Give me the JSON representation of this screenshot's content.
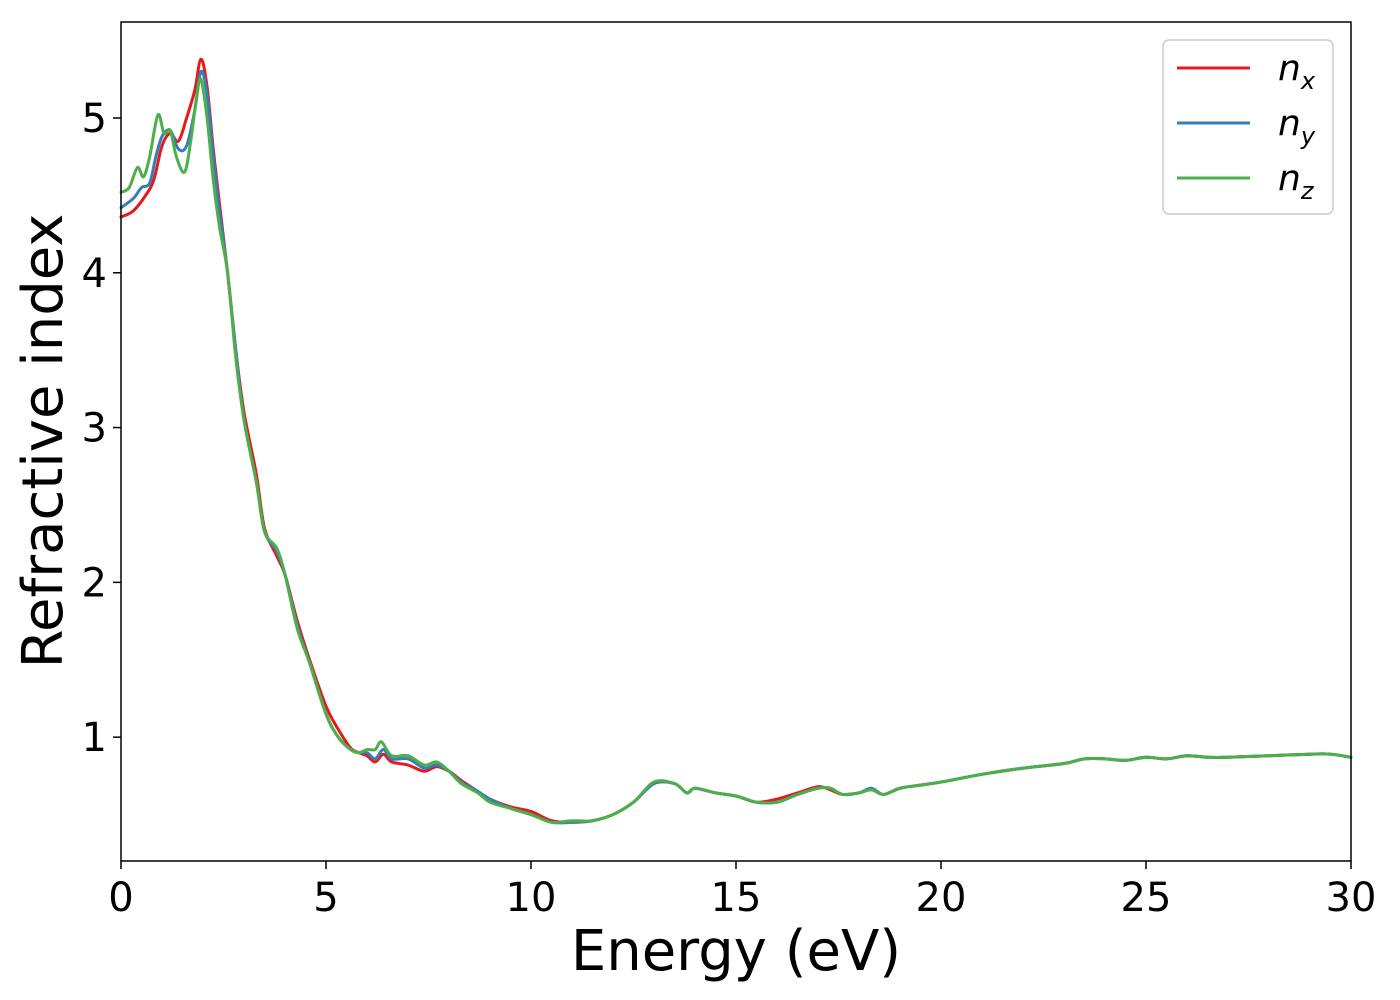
{
  "chart_data": {
    "type": "line",
    "title": "",
    "xlabel": "Energy (eV)",
    "ylabel": "Refractive index",
    "xlim": [
      0,
      30
    ],
    "ylim": [
      0.2,
      5.62
    ],
    "xticks": [
      0,
      5,
      10,
      15,
      20,
      25,
      30
    ],
    "xtick_labels": [
      "0",
      "5",
      "10",
      "15",
      "20",
      "25",
      "30"
    ],
    "yticks": [
      1,
      2,
      3,
      4,
      5
    ],
    "ytick_labels": [
      "1",
      "2",
      "3",
      "4",
      "5"
    ],
    "grid": false,
    "legend_position": "top-right",
    "series": [
      {
        "name": "n",
        "subscript": "x",
        "color": "#e41a1c",
        "points": [
          [
            0,
            4.36
          ],
          [
            0.3,
            4.4
          ],
          [
            0.6,
            4.5
          ],
          [
            0.8,
            4.6
          ],
          [
            1.0,
            4.82
          ],
          [
            1.2,
            4.9
          ],
          [
            1.4,
            4.85
          ],
          [
            1.6,
            5.0
          ],
          [
            1.8,
            5.18
          ],
          [
            1.95,
            5.38
          ],
          [
            2.1,
            5.2
          ],
          [
            2.25,
            4.8
          ],
          [
            2.4,
            4.45
          ],
          [
            2.6,
            4.0
          ],
          [
            2.8,
            3.5
          ],
          [
            3.0,
            3.1
          ],
          [
            3.3,
            2.7
          ],
          [
            3.5,
            2.35
          ],
          [
            3.8,
            2.17
          ],
          [
            4.0,
            2.05
          ],
          [
            4.3,
            1.75
          ],
          [
            4.6,
            1.5
          ],
          [
            5.0,
            1.2
          ],
          [
            5.3,
            1.05
          ],
          [
            5.6,
            0.93
          ],
          [
            5.8,
            0.9
          ],
          [
            6.0,
            0.88
          ],
          [
            6.2,
            0.84
          ],
          [
            6.4,
            0.89
          ],
          [
            6.6,
            0.84
          ],
          [
            7.0,
            0.82
          ],
          [
            7.4,
            0.78
          ],
          [
            7.7,
            0.81
          ],
          [
            8.0,
            0.78
          ],
          [
            8.3,
            0.72
          ],
          [
            8.7,
            0.65
          ],
          [
            9.0,
            0.6
          ],
          [
            9.5,
            0.55
          ],
          [
            10.0,
            0.52
          ],
          [
            10.5,
            0.46
          ],
          [
            11.0,
            0.45
          ],
          [
            11.5,
            0.46
          ],
          [
            12.0,
            0.5
          ],
          [
            12.5,
            0.58
          ],
          [
            13.0,
            0.7
          ],
          [
            13.5,
            0.7
          ],
          [
            13.8,
            0.64
          ],
          [
            14.0,
            0.67
          ],
          [
            14.5,
            0.64
          ],
          [
            15.0,
            0.62
          ],
          [
            15.5,
            0.58
          ],
          [
            16.0,
            0.6
          ],
          [
            16.5,
            0.64
          ],
          [
            17.0,
            0.68
          ],
          [
            17.3,
            0.66
          ],
          [
            17.6,
            0.63
          ],
          [
            18.0,
            0.64
          ],
          [
            18.3,
            0.66
          ],
          [
            18.6,
            0.63
          ],
          [
            19.0,
            0.67
          ],
          [
            19.5,
            0.69
          ],
          [
            20.0,
            0.71
          ],
          [
            21.0,
            0.76
          ],
          [
            22.0,
            0.8
          ],
          [
            23.0,
            0.83
          ],
          [
            23.5,
            0.86
          ],
          [
            24.0,
            0.86
          ],
          [
            24.5,
            0.85
          ],
          [
            25.0,
            0.87
          ],
          [
            25.5,
            0.86
          ],
          [
            26.0,
            0.88
          ],
          [
            26.5,
            0.87
          ],
          [
            27.0,
            0.87
          ],
          [
            28.0,
            0.88
          ],
          [
            29.0,
            0.89
          ],
          [
            29.5,
            0.89
          ],
          [
            30.0,
            0.87
          ]
        ]
      },
      {
        "name": "n",
        "subscript": "y",
        "color": "#377eb8",
        "points": [
          [
            0,
            4.42
          ],
          [
            0.3,
            4.48
          ],
          [
            0.5,
            4.55
          ],
          [
            0.7,
            4.58
          ],
          [
            0.85,
            4.75
          ],
          [
            1.0,
            4.88
          ],
          [
            1.2,
            4.92
          ],
          [
            1.4,
            4.8
          ],
          [
            1.6,
            4.82
          ],
          [
            1.8,
            5.05
          ],
          [
            1.95,
            5.3
          ],
          [
            2.1,
            5.15
          ],
          [
            2.25,
            4.75
          ],
          [
            2.4,
            4.4
          ],
          [
            2.6,
            4.0
          ],
          [
            2.8,
            3.5
          ],
          [
            3.0,
            3.05
          ],
          [
            3.3,
            2.65
          ],
          [
            3.5,
            2.33
          ],
          [
            3.8,
            2.2
          ],
          [
            4.0,
            2.05
          ],
          [
            4.3,
            1.72
          ],
          [
            4.6,
            1.48
          ],
          [
            5.0,
            1.15
          ],
          [
            5.3,
            1.0
          ],
          [
            5.6,
            0.92
          ],
          [
            5.8,
            0.9
          ],
          [
            6.0,
            0.9
          ],
          [
            6.2,
            0.86
          ],
          [
            6.4,
            0.92
          ],
          [
            6.6,
            0.86
          ],
          [
            7.0,
            0.86
          ],
          [
            7.4,
            0.8
          ],
          [
            7.7,
            0.82
          ],
          [
            8.0,
            0.78
          ],
          [
            8.3,
            0.71
          ],
          [
            8.7,
            0.65
          ],
          [
            9.0,
            0.6
          ],
          [
            9.5,
            0.54
          ],
          [
            10.0,
            0.5
          ],
          [
            10.5,
            0.45
          ],
          [
            11.0,
            0.45
          ],
          [
            11.5,
            0.46
          ],
          [
            12.0,
            0.5
          ],
          [
            12.5,
            0.58
          ],
          [
            13.0,
            0.7
          ],
          [
            13.5,
            0.7
          ],
          [
            13.8,
            0.64
          ],
          [
            14.0,
            0.67
          ],
          [
            14.5,
            0.64
          ],
          [
            15.0,
            0.62
          ],
          [
            15.5,
            0.58
          ],
          [
            16.0,
            0.58
          ],
          [
            16.5,
            0.63
          ],
          [
            17.0,
            0.67
          ],
          [
            17.3,
            0.67
          ],
          [
            17.6,
            0.63
          ],
          [
            18.0,
            0.64
          ],
          [
            18.3,
            0.67
          ],
          [
            18.6,
            0.63
          ],
          [
            19.0,
            0.67
          ],
          [
            19.5,
            0.69
          ],
          [
            20.0,
            0.71
          ],
          [
            21.0,
            0.76
          ],
          [
            22.0,
            0.8
          ],
          [
            23.0,
            0.83
          ],
          [
            23.5,
            0.86
          ],
          [
            24.0,
            0.86
          ],
          [
            24.5,
            0.85
          ],
          [
            25.0,
            0.87
          ],
          [
            25.5,
            0.86
          ],
          [
            26.0,
            0.88
          ],
          [
            26.5,
            0.87
          ],
          [
            27.0,
            0.87
          ],
          [
            28.0,
            0.88
          ],
          [
            29.0,
            0.89
          ],
          [
            29.5,
            0.89
          ],
          [
            30.0,
            0.87
          ]
        ]
      },
      {
        "name": "n",
        "subscript": "z",
        "color": "#4daf4a",
        "points": [
          [
            0,
            4.52
          ],
          [
            0.2,
            4.55
          ],
          [
            0.4,
            4.68
          ],
          [
            0.55,
            4.62
          ],
          [
            0.7,
            4.75
          ],
          [
            0.9,
            5.02
          ],
          [
            1.05,
            4.9
          ],
          [
            1.2,
            4.92
          ],
          [
            1.35,
            4.75
          ],
          [
            1.55,
            4.65
          ],
          [
            1.7,
            4.85
          ],
          [
            1.85,
            5.15
          ],
          [
            1.95,
            5.25
          ],
          [
            2.1,
            5.0
          ],
          [
            2.25,
            4.6
          ],
          [
            2.4,
            4.3
          ],
          [
            2.6,
            4.0
          ],
          [
            2.8,
            3.45
          ],
          [
            3.0,
            3.05
          ],
          [
            3.3,
            2.65
          ],
          [
            3.5,
            2.33
          ],
          [
            3.8,
            2.22
          ],
          [
            4.0,
            2.05
          ],
          [
            4.3,
            1.7
          ],
          [
            4.6,
            1.48
          ],
          [
            5.0,
            1.15
          ],
          [
            5.3,
            1.0
          ],
          [
            5.6,
            0.92
          ],
          [
            5.8,
            0.9
          ],
          [
            6.0,
            0.92
          ],
          [
            6.2,
            0.92
          ],
          [
            6.35,
            0.97
          ],
          [
            6.6,
            0.88
          ],
          [
            7.0,
            0.88
          ],
          [
            7.4,
            0.82
          ],
          [
            7.7,
            0.84
          ],
          [
            8.0,
            0.78
          ],
          [
            8.3,
            0.7
          ],
          [
            8.7,
            0.64
          ],
          [
            9.0,
            0.58
          ],
          [
            9.5,
            0.54
          ],
          [
            10.0,
            0.5
          ],
          [
            10.5,
            0.45
          ],
          [
            11.0,
            0.46
          ],
          [
            11.5,
            0.46
          ],
          [
            12.0,
            0.5
          ],
          [
            12.5,
            0.58
          ],
          [
            13.0,
            0.71
          ],
          [
            13.5,
            0.7
          ],
          [
            13.8,
            0.64
          ],
          [
            14.0,
            0.67
          ],
          [
            14.5,
            0.64
          ],
          [
            15.0,
            0.62
          ],
          [
            15.5,
            0.58
          ],
          [
            16.0,
            0.58
          ],
          [
            16.5,
            0.63
          ],
          [
            17.0,
            0.67
          ],
          [
            17.3,
            0.67
          ],
          [
            17.6,
            0.63
          ],
          [
            18.0,
            0.64
          ],
          [
            18.3,
            0.66
          ],
          [
            18.6,
            0.63
          ],
          [
            19.0,
            0.67
          ],
          [
            19.5,
            0.69
          ],
          [
            20.0,
            0.71
          ],
          [
            21.0,
            0.76
          ],
          [
            22.0,
            0.8
          ],
          [
            23.0,
            0.83
          ],
          [
            23.5,
            0.86
          ],
          [
            24.0,
            0.86
          ],
          [
            24.5,
            0.85
          ],
          [
            25.0,
            0.87
          ],
          [
            25.5,
            0.86
          ],
          [
            26.0,
            0.88
          ],
          [
            26.5,
            0.87
          ],
          [
            27.0,
            0.87
          ],
          [
            28.0,
            0.88
          ],
          [
            29.0,
            0.89
          ],
          [
            29.5,
            0.89
          ],
          [
            30.0,
            0.87
          ]
        ]
      }
    ]
  }
}
